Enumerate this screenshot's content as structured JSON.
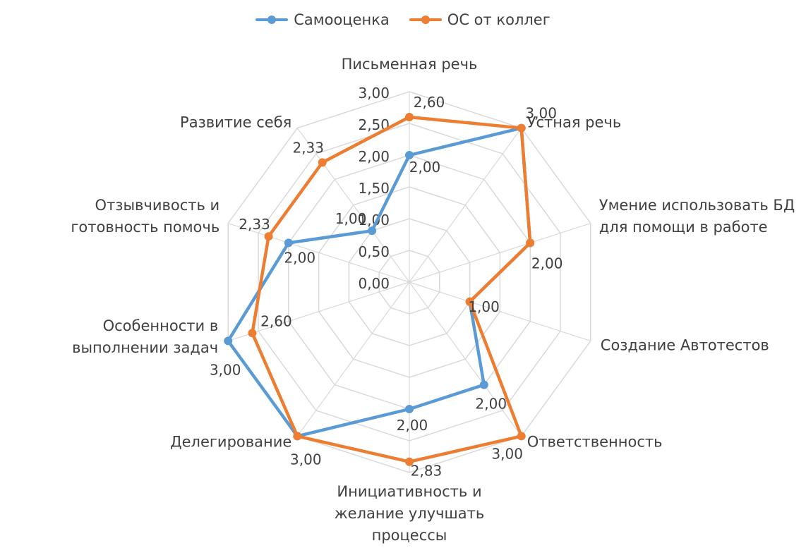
{
  "chart_data": {
    "type": "radar",
    "title": "",
    "categories": [
      "Письменная речь",
      "Устная речь",
      "Умение использовать БД\nдля помощи в работе",
      "Создание Автотестов",
      "Ответственность",
      "Инициативность и\nжелание улучшать\nпроцессы",
      "Делегирование",
      "Особенности в\nвыполнении задач",
      "Отзывчивость и\nготовность помочь",
      "Развитие себя"
    ],
    "series": [
      {
        "name": "Самооценка",
        "color": "#5b9bd5",
        "values": [
          2.0,
          3.0,
          2.0,
          1.0,
          2.0,
          2.0,
          3.0,
          3.0,
          2.0,
          1.0
        ],
        "value_labels": [
          "2,00",
          "3,00",
          "2,00",
          "1,00",
          "2,00",
          "2,00",
          "3,00",
          "3,00",
          "2,00",
          "1,00"
        ]
      },
      {
        "name": "ОС от коллег",
        "color": "#ed7d31",
        "values": [
          2.6,
          3.0,
          2.0,
          1.0,
          3.0,
          2.83,
          3.0,
          2.6,
          2.33,
          2.33
        ],
        "value_labels": [
          "2,60",
          "",
          "",
          "",
          "3,00",
          "2,83",
          "",
          "2,60",
          "2,33",
          "2,33"
        ]
      }
    ],
    "rmin": 0,
    "rmax": 3,
    "ticks": [
      0,
      0.5,
      1,
      1.5,
      2,
      2.5,
      3
    ],
    "tick_labels": [
      "0,00",
      "0,50",
      "1,00",
      "1,50",
      "2,00",
      "2,50",
      "3,00"
    ],
    "grid": true,
    "legend_position": "top"
  }
}
